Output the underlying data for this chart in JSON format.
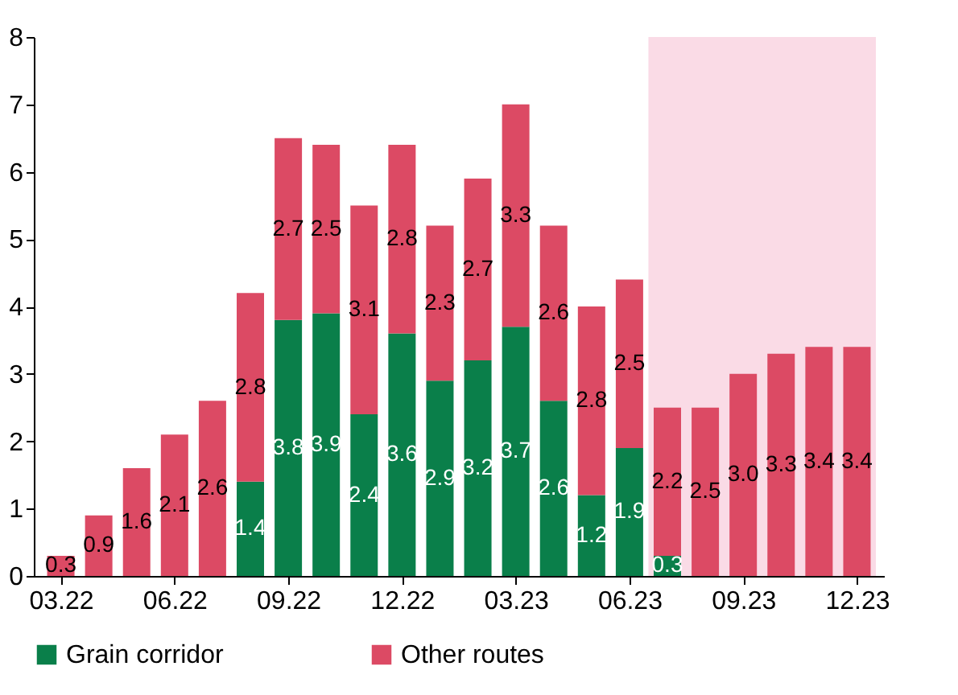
{
  "chart_data": {
    "type": "bar",
    "stacked": true,
    "legend": "bottom",
    "categories": [
      "03.22",
      null,
      null,
      "06.22",
      null,
      null,
      "09.22",
      null,
      null,
      "12.22",
      null,
      null,
      "03.23",
      null,
      null,
      "06.23",
      null,
      null,
      "09.23",
      null,
      null,
      "12.23"
    ],
    "series": [
      {
        "name": "Grain corridor",
        "color": "#0a7f4a",
        "values": [
          null,
          null,
          null,
          null,
          null,
          1.4,
          3.8,
          3.9,
          2.4,
          3.6,
          2.9,
          3.2,
          3.7,
          2.6,
          1.2,
          1.9,
          0.3,
          null,
          null,
          null,
          null,
          null
        ],
        "value_labels": [
          null,
          null,
          null,
          null,
          null,
          "1.4",
          "3.8",
          "3.9",
          "2.4",
          "3.6",
          "2.9",
          "3.2",
          "3.7",
          "2.6",
          "1.2",
          "1.9",
          "0.3",
          null,
          null,
          null,
          null,
          null
        ]
      },
      {
        "name": "Other routes",
        "color": "#dc4a64",
        "values": [
          0.3,
          0.9,
          1.6,
          2.1,
          2.6,
          2.8,
          2.7,
          2.5,
          3.1,
          2.8,
          2.3,
          2.7,
          3.3,
          2.6,
          2.8,
          2.5,
          2.2,
          2.5,
          3.0,
          3.3,
          3.4,
          3.4
        ],
        "value_labels": [
          "0.3",
          "0.9",
          "1.6",
          "2.1",
          "2.6",
          "2.8",
          "2.7",
          "2.5",
          "3.1",
          "2.8",
          "2.3",
          "2.7",
          "3.3",
          "2.6",
          "2.8",
          "2.5",
          "2.2",
          "2.5",
          "3.0",
          "3.3",
          "3.4",
          "3.4"
        ]
      }
    ],
    "ylim": [
      0,
      8
    ],
    "yticks": [
      0,
      1,
      2,
      3,
      4,
      5,
      6,
      7,
      8
    ],
    "bands": [
      {
        "axis": "x",
        "from": "06.23",
        "to": "12.23",
        "color": "#fadbe6"
      }
    ]
  }
}
